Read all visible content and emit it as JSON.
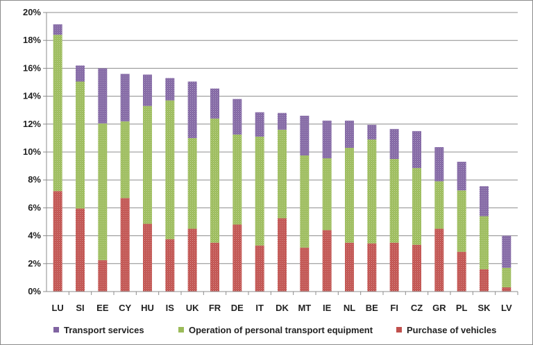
{
  "chart_data": {
    "type": "bar",
    "stacked": true,
    "categories": [
      "LU",
      "SI",
      "EE",
      "CY",
      "HU",
      "IS",
      "UK",
      "FR",
      "DE",
      "IT",
      "DK",
      "MT",
      "IE",
      "NL",
      "BE",
      "FI",
      "CZ",
      "GR",
      "PL",
      "SK",
      "LV"
    ],
    "series": [
      {
        "name": "Purchase of vehicles",
        "color": "#c0504d",
        "pattern": "dotted",
        "values": [
          7.2,
          5.95,
          2.25,
          6.7,
          4.85,
          3.75,
          4.5,
          3.5,
          4.8,
          3.3,
          5.25,
          3.15,
          4.4,
          3.5,
          3.45,
          3.5,
          3.35,
          4.5,
          2.85,
          1.6,
          0.3
        ]
      },
      {
        "name": "Operation of personal transport equipment",
        "color": "#9bbb59",
        "pattern": "dotted",
        "values": [
          11.2,
          9.1,
          9.8,
          5.5,
          8.45,
          9.95,
          6.5,
          8.9,
          6.45,
          7.8,
          6.35,
          6.6,
          5.15,
          6.8,
          7.45,
          6.0,
          5.5,
          3.4,
          4.4,
          3.8,
          1.4
        ]
      },
      {
        "name": "Transport services",
        "color": "#8064a2",
        "pattern": "dotted",
        "values": [
          0.75,
          1.15,
          3.95,
          3.4,
          2.25,
          1.6,
          4.05,
          2.15,
          2.55,
          1.75,
          1.2,
          2.85,
          2.7,
          1.95,
          1.05,
          2.15,
          2.65,
          2.45,
          2.05,
          2.15,
          2.3
        ]
      }
    ],
    "y_ticks": [
      "0%",
      "2%",
      "4%",
      "6%",
      "8%",
      "10%",
      "12%",
      "14%",
      "16%",
      "18%",
      "20%"
    ],
    "ylim": [
      0,
      20
    ],
    "grid": true,
    "legend_position": "bottom",
    "legend_order": [
      2,
      1,
      0
    ]
  }
}
